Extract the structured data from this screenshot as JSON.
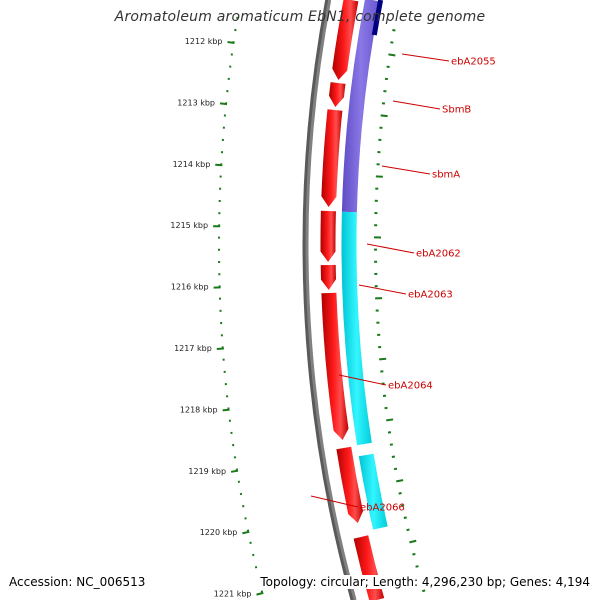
{
  "header": {
    "title": "Aromatoleum aromaticum EbN1, complete genome"
  },
  "footer": {
    "accession": "Accession: NC_006513",
    "topology": "Topology: circular; Length: 4,296,230 bp; Genes: 4,194"
  },
  "colors": {
    "backbone": "#808080",
    "forward_cds": "#ff0000",
    "operon_purple": "#7b68d8",
    "operon_navy": "#000080",
    "operon_cyan": "#00e5ee",
    "ticks": "#1a7a1a",
    "label": "#cc0000"
  },
  "ruler": [
    {
      "label": "1212 kbp"
    },
    {
      "label": "1213 kbp"
    },
    {
      "label": "1214 kbp"
    },
    {
      "label": "1215 kbp"
    },
    {
      "label": "1216 kbp"
    },
    {
      "label": "1217 kbp"
    },
    {
      "label": "1218 kbp"
    },
    {
      "label": "1219 kbp"
    },
    {
      "label": "1220 kbp"
    },
    {
      "label": "1221 kbp"
    }
  ],
  "gene_labels": [
    {
      "name": "ebA2055"
    },
    {
      "name": "SbmB"
    },
    {
      "name": "sbmA"
    },
    {
      "name": "ebA2062"
    },
    {
      "name": "ebA2063"
    },
    {
      "name": "ebA2064"
    },
    {
      "name": "ebA2066"
    }
  ]
}
